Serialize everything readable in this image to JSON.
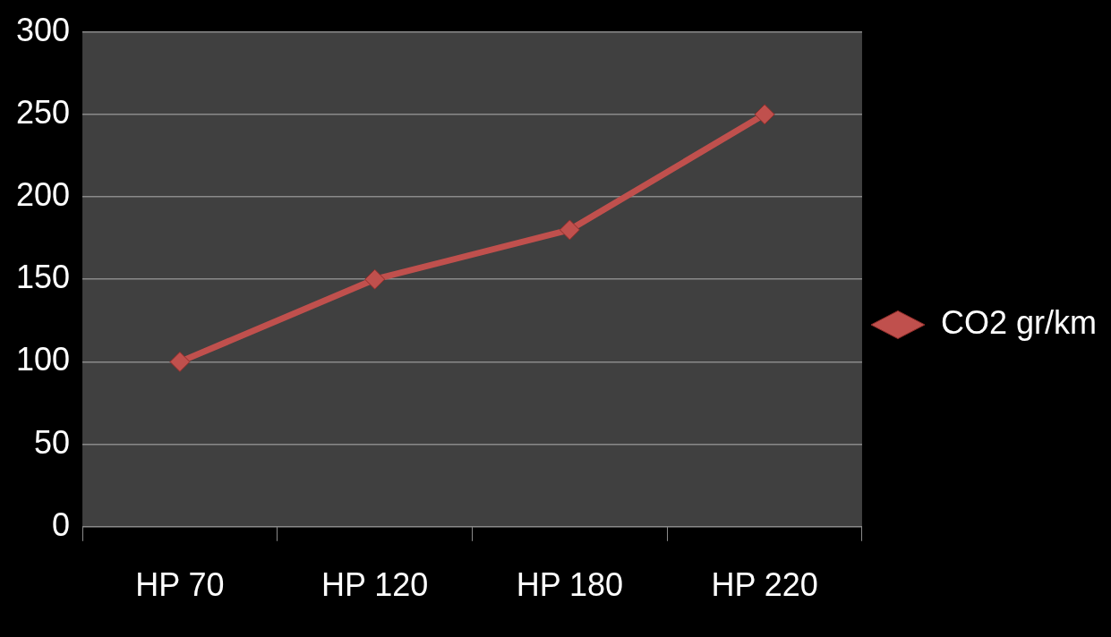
{
  "chart_data": {
    "type": "line",
    "categories": [
      "HP 70",
      "HP 120",
      "HP 180",
      "HP 220"
    ],
    "series": [
      {
        "name": "CO2 gr/km",
        "color": "#c0504d",
        "values": [
          100,
          150,
          180,
          250
        ]
      }
    ],
    "ylim": [
      0,
      300
    ],
    "yticks": [
      0,
      50,
      100,
      150,
      200,
      250,
      300
    ],
    "grid": "y",
    "legend": "right",
    "marker": "diamond",
    "line_style": "solid"
  }
}
